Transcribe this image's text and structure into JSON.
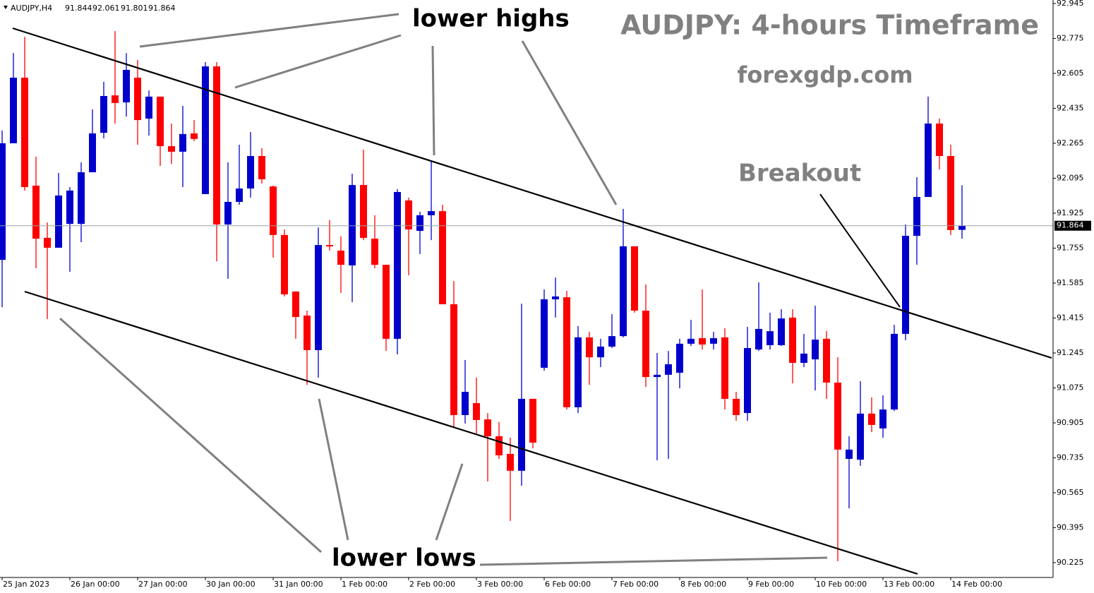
{
  "chart_data": {
    "type": "candlestick",
    "symbol": "AUDJPY,H4",
    "title": "AUDJPY: 4-hours Timeframe",
    "subtitle": "forexgdp.com",
    "annotations": {
      "lower_highs": "lower highs",
      "lower_lows": "lower lows",
      "breakout": "Breakout"
    },
    "categories": [
      "25 Jan 2023",
      null,
      null,
      null,
      null,
      null,
      "26 Jan 00:00",
      null,
      null,
      null,
      null,
      null,
      "27 Jan 00:00",
      null,
      null,
      null,
      null,
      null,
      "30 Jan 00:00",
      null,
      null,
      null,
      null,
      null,
      "31 Jan 00:00",
      null,
      null,
      null,
      null,
      null,
      "1 Feb 00:00",
      null,
      null,
      null,
      null,
      null,
      "2 Feb 00:00",
      null,
      null,
      null,
      null,
      null,
      "3 Feb 00:00",
      null,
      null,
      null,
      null,
      null,
      "6 Feb 00:00",
      null,
      null,
      null,
      null,
      null,
      "7 Feb 00:00",
      null,
      null,
      null,
      null,
      null,
      "8 Feb 00:00",
      null,
      null,
      null,
      null,
      null,
      "9 Feb 00:00",
      null,
      null,
      null,
      null,
      null,
      "10 Feb 00:00",
      null,
      null,
      null,
      null,
      null,
      "13 Feb 00:00",
      null,
      null,
      null,
      null,
      null,
      "14 Feb 00:00",
      null
    ],
    "open": [
      91.698,
      92.265,
      92.584,
      92.059,
      91.805,
      91.757,
      91.873,
      91.873,
      92.124,
      92.316,
      92.498,
      92.464,
      92.584,
      92.385,
      92.492,
      92.251,
      92.224,
      92.313,
      92.018,
      92.639,
      91.87,
      91.98,
      92.045,
      92.203,
      92.055,
      91.819,
      91.544,
      91.427,
      91.259,
      91.77,
      91.743,
      91.671,
      92.062,
      91.801,
      91.674,
      91.314,
      91.987,
      91.839,
      91.915,
      91.935,
      91.482,
      90.943,
      91.001,
      90.922,
      90.84,
      90.754,
      90.672,
      91.022,
      91.173,
      91.506,
      91.516,
      90.981,
      91.321,
      91.224,
      91.276,
      91.327,
      91.764,
      91.451,
      91.128,
      91.139,
      91.149,
      91.29,
      91.317,
      91.29,
      91.321,
      91.022,
      90.953,
      91.262,
      91.283,
      91.283,
      91.417,
      91.197,
      91.214,
      91.314,
      91.101,
      90.73,
      90.726,
      90.95,
      90.878,
      90.97,
      91.338,
      91.815,
      92.004,
      92.361,
      92.203,
      91.844
    ],
    "high": [
      92.327,
      92.704,
      92.783,
      92.2,
      91.88,
      92.121,
      92.052,
      92.172,
      92.43,
      92.564,
      92.811,
      92.704,
      92.67,
      92.522,
      92.492,
      92.361,
      92.447,
      92.378,
      92.66,
      92.66,
      92.172,
      92.258,
      92.32,
      92.241,
      92.059,
      91.846,
      91.544,
      91.451,
      91.856,
      91.891,
      91.812,
      92.117,
      92.234,
      91.915,
      91.674,
      92.042,
      92.001,
      91.932,
      92.179,
      91.966,
      91.595,
      91.211,
      91.125,
      90.953,
      90.909,
      90.833,
      91.485,
      91.022,
      91.554,
      91.612,
      91.547,
      91.376,
      91.348,
      91.314,
      91.434,
      91.946,
      91.764,
      91.578,
      91.245,
      91.255,
      91.314,
      91.406,
      91.554,
      91.348,
      91.365,
      91.056,
      91.372,
      91.588,
      91.441,
      91.458,
      91.458,
      91.338,
      91.475,
      91.352,
      91.224,
      90.84,
      91.108,
      91.029,
      91.039,
      91.382,
      91.87,
      92.1,
      92.492,
      92.385,
      92.258,
      92.061
    ],
    "low": [
      91.468,
      92.265,
      92.035,
      91.657,
      91.41,
      91.757,
      91.64,
      91.784,
      92.124,
      92.289,
      92.361,
      92.395,
      92.258,
      92.303,
      92.155,
      92.165,
      92.052,
      92.275,
      92.018,
      91.691,
      91.606,
      91.966,
      92.001,
      92.069,
      91.709,
      91.52,
      91.314,
      91.09,
      91.125,
      91.743,
      91.537,
      91.492,
      91.794,
      91.657,
      91.255,
      91.238,
      91.623,
      91.726,
      91.794,
      91.482,
      90.884,
      90.902,
      90.85,
      90.62,
      90.73,
      90.428,
      90.599,
      90.781,
      91.159,
      91.417,
      90.97,
      90.953,
      91.09,
      91.176,
      91.269,
      91.321,
      91.441,
      91.08,
      90.723,
      90.73,
      91.073,
      91.279,
      91.262,
      91.262,
      90.97,
      90.915,
      90.915,
      91.255,
      91.262,
      91.279,
      91.097,
      91.176,
      91.063,
      91.022,
      90.232,
      90.489,
      90.696,
      90.86,
      90.833,
      90.963,
      91.307,
      91.674,
      92.004,
      92.138,
      91.819,
      91.801
    ],
    "close": [
      92.265,
      92.584,
      92.052,
      91.801,
      91.757,
      92.011,
      92.035,
      92.124,
      92.313,
      92.495,
      92.461,
      92.622,
      92.378,
      92.492,
      92.251,
      92.224,
      92.31,
      92.286,
      92.639,
      91.87,
      91.98,
      92.045,
      92.203,
      92.09,
      91.819,
      91.53,
      91.42,
      91.259,
      91.77,
      91.767,
      91.674,
      92.062,
      91.805,
      91.674,
      91.314,
      92.028,
      91.846,
      91.915,
      91.935,
      91.482,
      90.943,
      91.056,
      90.919,
      90.84,
      90.747,
      90.672,
      91.022,
      90.809,
      91.506,
      91.52,
      90.981,
      91.321,
      91.224,
      91.276,
      91.327,
      91.764,
      91.451,
      91.128,
      91.139,
      91.19,
      91.29,
      91.314,
      91.286,
      91.317,
      91.022,
      90.943,
      91.269,
      91.362,
      91.351,
      91.413,
      91.197,
      91.242,
      91.31,
      91.101,
      90.775,
      90.775,
      90.95,
      90.895,
      90.97,
      91.338,
      91.815,
      92.004,
      92.361,
      92.203,
      91.843,
      91.864
    ],
    "up_color": "#0000cd",
    "down_color": "#ff0000",
    "ylim": [
      90.153,
      92.962
    ],
    "yticks": [
      92.945,
      92.775,
      92.605,
      92.435,
      92.265,
      92.095,
      91.925,
      91.755,
      91.585,
      91.415,
      91.245,
      91.075,
      90.905,
      90.735,
      90.565,
      90.395,
      90.225
    ]
  }
}
